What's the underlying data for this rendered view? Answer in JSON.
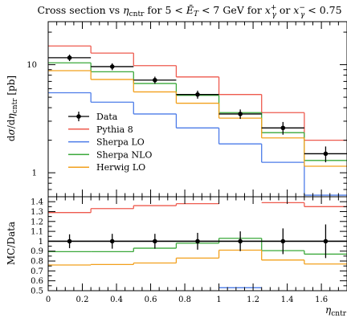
{
  "chart_data": [
    {
      "type": "line",
      "panel": "main",
      "title": "Cross section vs η_cntr for 5 < Ē_T < 7 GeV for x_γ⁺ or x_γ⁻ < 0.75",
      "ylabel": "dσ/dη_cntr [pb]",
      "yscale": "log",
      "ylim": [
        0.6,
        25
      ],
      "xlim": [
        0,
        1.75
      ],
      "bin_edges": [
        0,
        0.25,
        0.5,
        0.75,
        1.0,
        1.25,
        1.5,
        1.75
      ],
      "y_tick_labels": [
        "1",
        "10"
      ],
      "legend_position": "lower-left",
      "data": {
        "name": "Data",
        "x": [
          0.125,
          0.375,
          0.625,
          0.875,
          1.125,
          1.375,
          1.625
        ],
        "y": [
          11.6,
          9.6,
          7.2,
          5.3,
          3.5,
          2.6,
          1.5
        ],
        "err": [
          0.8,
          0.7,
          0.55,
          0.45,
          0.35,
          0.35,
          0.25
        ]
      },
      "series": [
        {
          "name": "Pythia 8",
          "color": "#ee5a4e",
          "values": [
            14.9,
            12.8,
            9.8,
            7.7,
            5.3,
            3.6,
            2.0
          ]
        },
        {
          "name": "Sherpa LO",
          "color": "#4b7be8",
          "values": [
            5.5,
            4.5,
            3.5,
            2.6,
            1.85,
            1.25,
            0.62
          ]
        },
        {
          "name": "Sherpa NLO",
          "color": "#3aa83a",
          "values": [
            10.4,
            8.6,
            6.7,
            5.2,
            3.6,
            2.35,
            1.3
          ]
        },
        {
          "name": "Herwig LO",
          "color": "#f2a01c",
          "values": [
            8.8,
            7.3,
            5.6,
            4.4,
            3.2,
            2.1,
            1.15
          ]
        }
      ]
    },
    {
      "type": "line",
      "panel": "ratio",
      "ylabel": "MC/Data",
      "xlabel": "η_cntr",
      "ylim": [
        0.5,
        1.45
      ],
      "xlim": [
        0,
        1.75
      ],
      "bin_edges": [
        0,
        0.25,
        0.5,
        0.75,
        1.0,
        1.25,
        1.5,
        1.75
      ],
      "x_ticks": [
        0,
        0.2,
        0.4,
        0.6,
        0.8,
        1,
        1.2,
        1.4,
        1.6
      ],
      "x_tick_labels": [
        "0",
        "0.2",
        "0.4",
        "0.6",
        "0.8",
        "1",
        "1.2",
        "1.4",
        "1.6"
      ],
      "y_ticks": [
        0.5,
        0.6,
        0.7,
        0.8,
        0.9,
        1,
        1.1,
        1.2,
        1.3,
        1.4
      ],
      "y_tick_labels": [
        "0.5",
        "0.6",
        "0.7",
        "0.8",
        "0.9",
        "1",
        "1.1",
        "1.2",
        "1.3",
        "1.4"
      ],
      "data": {
        "name": "Data",
        "x": [
          0.125,
          0.375,
          0.625,
          0.875,
          1.125,
          1.375,
          1.625
        ],
        "y": [
          1,
          1,
          1,
          1,
          1,
          1,
          1
        ],
        "err": [
          0.07,
          0.075,
          0.075,
          0.085,
          0.1,
          0.13,
          0.17
        ]
      },
      "series": [
        {
          "name": "Pythia 8",
          "color": "#ee5a4e",
          "values": [
            1.29,
            1.33,
            1.36,
            1.38,
            1.52,
            1.39,
            1.35
          ]
        },
        {
          "name": "Sherpa LO",
          "color": "#4b7be8",
          "values": [
            0.47,
            0.47,
            0.49,
            0.49,
            0.53,
            0.48,
            0.41
          ]
        },
        {
          "name": "Sherpa NLO",
          "color": "#3aa83a",
          "values": [
            0.895,
            0.895,
            0.93,
            0.98,
            1.03,
            0.905,
            0.87
          ]
        },
        {
          "name": "Herwig LO",
          "color": "#f2a01c",
          "values": [
            0.76,
            0.765,
            0.78,
            0.83,
            0.91,
            0.81,
            0.77
          ]
        }
      ]
    }
  ]
}
